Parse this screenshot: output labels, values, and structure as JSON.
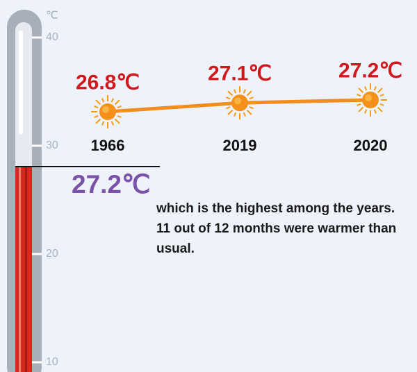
{
  "thermometer": {
    "unit": "℃",
    "ticks": [
      40,
      30,
      20,
      10
    ],
    "axis_range": [
      10,
      40
    ],
    "fill_color": "#d42a1e",
    "tube_color": "#a7afb9"
  },
  "current": {
    "label": "27.2℃",
    "color": "#7a52a8"
  },
  "note": {
    "line1": "which is the highest among the years.",
    "line2": "11 out of 12 months were warmer than",
    "line3": "usual."
  },
  "chart_data": {
    "type": "line",
    "categories": [
      "1966",
      "2019",
      "2020"
    ],
    "values": [
      26.8,
      27.1,
      27.2
    ],
    "data_labels": [
      "26.8℃",
      "27.1℃",
      "27.2℃"
    ],
    "marker": "sun-icon",
    "line_color": "#f28c1e",
    "label_color": "#d0191c",
    "title": "",
    "xlabel": "",
    "ylabel": ""
  }
}
